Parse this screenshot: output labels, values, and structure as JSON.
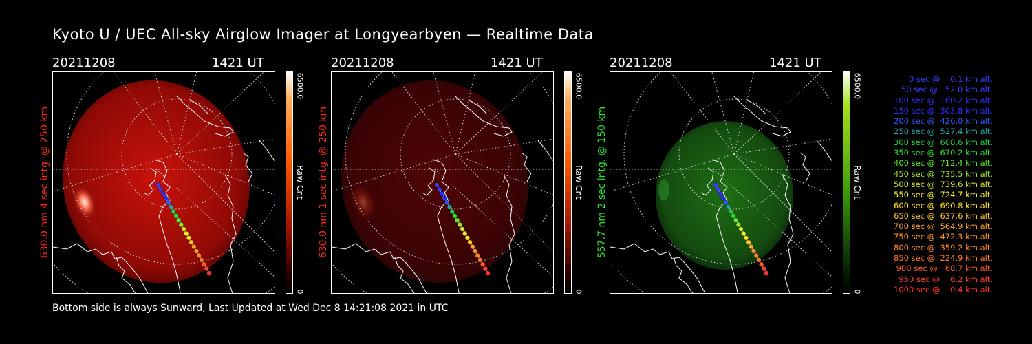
{
  "title": "Kyoto U / UEC All-sky Airglow Imager at Longyearbyen — Realtime Data",
  "footer": "Bottom side is always Sunward, Last Updated at Wed Dec  8 14:21:08 2021 in UTC",
  "panels": [
    {
      "date": "20211208",
      "time": "1421 UT",
      "side_label": "630.0 nm 4 sec intg. @ 250 km",
      "colorbar_max": "6500.0",
      "colorbar_min": "0",
      "colorbar_label": "Raw Cnt",
      "label_color": "#ff2a1a",
      "intensity": 1.0
    },
    {
      "date": "20211208",
      "time": "1421 UT",
      "side_label": "630.0 nm 1 sec intg. @ 250 km",
      "colorbar_max": "6500.0",
      "colorbar_min": "0",
      "colorbar_label": "Raw Cnt",
      "label_color": "#ff2a1a",
      "intensity": 0.28
    },
    {
      "date": "20211208",
      "time": "1421 UT",
      "side_label": "557.7 nm 2 sec intg. @ 150 km",
      "colorbar_max": "6500.0",
      "colorbar_min": "0",
      "colorbar_label": "Raw Cnt",
      "label_color": "#2fe32f",
      "intensity": 0.6
    }
  ],
  "legend": [
    {
      "text": "   0 sec @    0.1 km alt.",
      "color": "#3a3aff"
    },
    {
      "text": "  50 sec @   52.0 km alt.",
      "color": "#3a3aff"
    },
    {
      "text": " 100 sec @  160.2 km alt.",
      "color": "#2d2dff"
    },
    {
      "text": " 150 sec @  303.8 km alt.",
      "color": "#2d2dff"
    },
    {
      "text": " 200 sec @  426.0 km alt.",
      "color": "#2a5aff"
    },
    {
      "text": " 250 sec @  527.4 km alt.",
      "color": "#2aa3a3"
    },
    {
      "text": " 300 sec @  608.6 km alt.",
      "color": "#22cc44"
    },
    {
      "text": " 350 sec @  670.2 km alt.",
      "color": "#2ae02a"
    },
    {
      "text": " 400 sec @  712.4 km alt.",
      "color": "#5ae82a"
    },
    {
      "text": " 450 sec @  735.5 km alt.",
      "color": "#9ae82a"
    },
    {
      "text": " 500 sec @  739.6 km alt.",
      "color": "#cfe82a"
    },
    {
      "text": " 550 sec @  724.7 km alt.",
      "color": "#f2f22a"
    },
    {
      "text": " 600 sec @  690.8 km alt.",
      "color": "#ffe02a"
    },
    {
      "text": " 650 sec @  637.6 km alt.",
      "color": "#ffc02a"
    },
    {
      "text": " 700 sec @  564.9 km alt.",
      "color": "#ffa52a"
    },
    {
      "text": " 750 sec @  472.3 km alt.",
      "color": "#ff952a"
    },
    {
      "text": " 800 sec @  359.2 km alt.",
      "color": "#ff852a"
    },
    {
      "text": " 850 sec @  224.9 km alt.",
      "color": "#ff752a"
    },
    {
      "text": " 900 sec @   68.7 km alt.",
      "color": "#ff5a2a"
    },
    {
      "text": " 950 sec @    6.2 km alt.",
      "color": "#ff402a"
    },
    {
      "text": "1000 sec @    0.4 km alt.",
      "color": "#ff302a"
    }
  ]
}
